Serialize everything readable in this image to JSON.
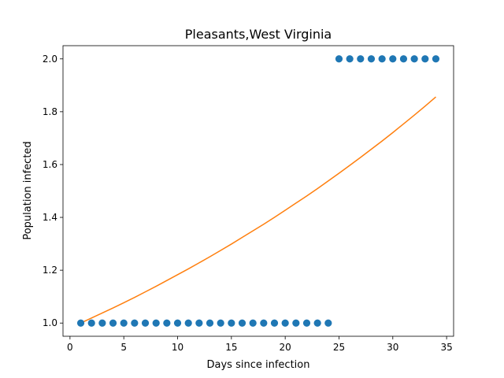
{
  "chart_data": {
    "type": "scatter",
    "title": "Pleasants,West Virginia",
    "xlabel": "Days since infection",
    "ylabel": "Population infected",
    "xlim": [
      -0.65,
      35.65
    ],
    "ylim": [
      0.95,
      2.05
    ],
    "xticks": [
      0,
      5,
      10,
      15,
      20,
      25,
      30,
      35
    ],
    "xtick_labels": [
      "0",
      "5",
      "10",
      "15",
      "20",
      "25",
      "30",
      "35"
    ],
    "yticks": [
      1.0,
      1.2,
      1.4,
      1.6,
      1.8,
      2.0
    ],
    "ytick_labels": [
      "1.0",
      "1.2",
      "1.4",
      "1.6",
      "1.8",
      "2.0"
    ],
    "grid": false,
    "series": [
      {
        "kind": "scatter",
        "color": "#1f77b4",
        "x": [
          1,
          2,
          3,
          4,
          5,
          6,
          7,
          8,
          9,
          10,
          11,
          12,
          13,
          14,
          15,
          16,
          17,
          18,
          19,
          20,
          21,
          22,
          23,
          24,
          25,
          26,
          27,
          28,
          29,
          30,
          31,
          32,
          33,
          34
        ],
        "y": [
          1,
          1,
          1,
          1,
          1,
          1,
          1,
          1,
          1,
          1,
          1,
          1,
          1,
          1,
          1,
          1,
          1,
          1,
          1,
          1,
          1,
          1,
          1,
          1,
          2,
          2,
          2,
          2,
          2,
          2,
          2,
          2,
          2,
          2
        ]
      },
      {
        "kind": "line",
        "color": "#ff7f0e",
        "x": [
          1,
          2,
          3,
          4,
          5,
          6,
          7,
          8,
          9,
          10,
          11,
          12,
          13,
          14,
          15,
          16,
          17,
          18,
          19,
          20,
          21,
          22,
          23,
          24,
          25,
          26,
          27,
          28,
          29,
          30,
          31,
          32,
          33,
          34
        ],
        "y": [
          1.0,
          1.019,
          1.038,
          1.057,
          1.077,
          1.097,
          1.118,
          1.139,
          1.161,
          1.183,
          1.205,
          1.228,
          1.251,
          1.275,
          1.299,
          1.324,
          1.349,
          1.374,
          1.4,
          1.427,
          1.454,
          1.481,
          1.509,
          1.538,
          1.567,
          1.597,
          1.627,
          1.658,
          1.689,
          1.721,
          1.754,
          1.787,
          1.821,
          1.856
        ]
      }
    ]
  }
}
